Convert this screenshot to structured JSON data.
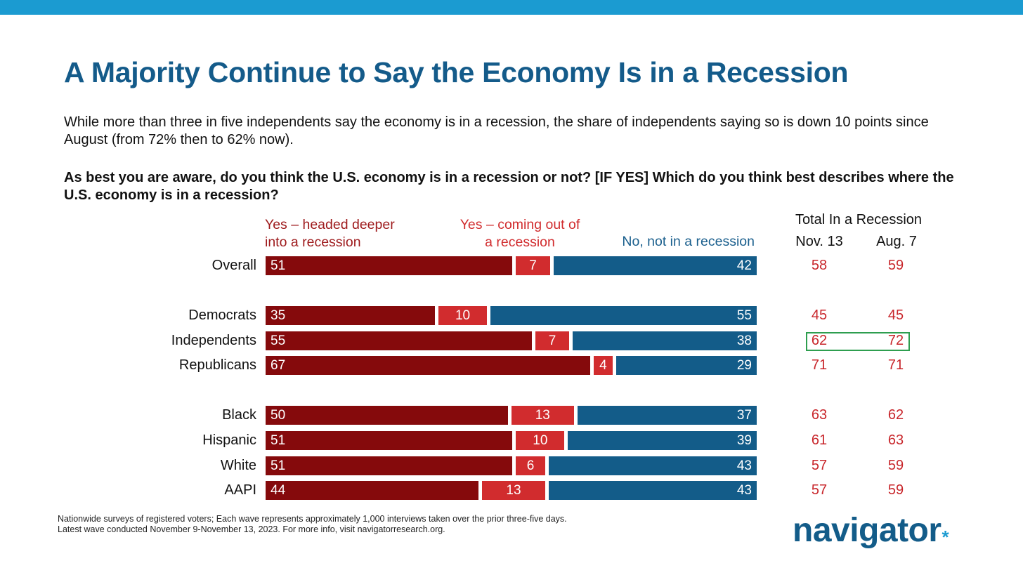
{
  "colors": {
    "top_bar": "#1b9bd1",
    "title": "#145b8a",
    "deeper": "#850a0c",
    "coming": "#d12c2e",
    "no": "#135c89",
    "stat_text": "#c8262b",
    "legend_red": "#9e1a1c",
    "legend_blue": "#1a5f8d",
    "highlight": "#2e9e4f",
    "logo": "#135c89",
    "logo_dot": "#1b9bd1"
  },
  "title": "A Majority Continue to Say the Economy Is in a Recession",
  "subtitle": "While more than three in five independents say the economy is in a recession, the share of independents saying so is down 10 points since August (from 72% then to 62% now).",
  "question": "As best you are aware, do you think the U.S. economy is in a recession or not? [IF YES] Which do you think best describes where the U.S. economy is in a recession?",
  "table_header": {
    "total": "Total In a Recession",
    "nov": "Nov. 13",
    "aug": "Aug. 7"
  },
  "footnote": {
    "line1": "Nationwide surveys of registered voters; Each wave represents approximately 1,000 interviews taken over the prior three-five days.",
    "line2": "Latest wave conducted November 9-November 13, 2023. For more info, visit navigatorresearch.org."
  },
  "logo": {
    "text": "navigator",
    "mark": "*"
  },
  "chart_data": {
    "type": "bar",
    "orientation": "horizontal",
    "stacked": true,
    "xlim": [
      0,
      100
    ],
    "categories": [
      "Overall",
      "Democrats",
      "Independents",
      "Republicans",
      "Black",
      "Hispanic",
      "White",
      "AAPI"
    ],
    "series": [
      {
        "name": "Yes – headed deeper into a recession",
        "name_lines": [
          "Yes – headed deeper",
          "into a recession"
        ],
        "values": [
          51,
          35,
          55,
          67,
          50,
          51,
          51,
          44
        ]
      },
      {
        "name": "Yes – coming out of a recession",
        "name_lines": [
          "Yes – coming out of",
          "a recession"
        ],
        "values": [
          7,
          10,
          7,
          4,
          13,
          10,
          6,
          13
        ]
      },
      {
        "name": "No, not in a recession",
        "name_lines": [
          "No, not in a recession"
        ],
        "values": [
          42,
          55,
          38,
          29,
          37,
          39,
          43,
          43
        ]
      }
    ],
    "total_in_recession": {
      "Nov. 13": [
        58,
        45,
        62,
        71,
        63,
        61,
        57,
        57
      ],
      "Aug. 7": [
        59,
        45,
        72,
        71,
        62,
        63,
        59,
        59
      ]
    },
    "highlighted_category": "Independents"
  }
}
